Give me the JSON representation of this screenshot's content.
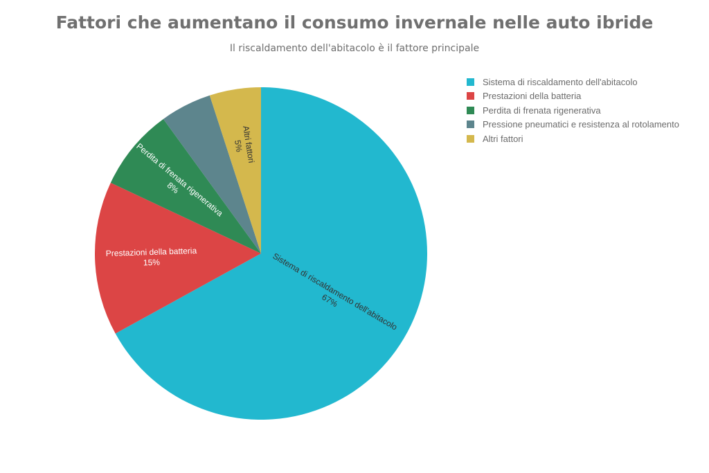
{
  "chart_data": {
    "type": "pie",
    "title": "Fattori che aumentano il consumo invernale nelle auto ibride",
    "subtitle": "Il riscaldamento dell'abitacolo è il fattore principale",
    "legend_position": "top-right",
    "slices": [
      {
        "label": "Sistema di riscaldamento dell'abitacolo",
        "value": 67,
        "value_label": "67%",
        "color": "#22b8cf"
      },
      {
        "label": "Prestazioni della batteria",
        "value": 15,
        "value_label": "15%",
        "color": "#dc4545"
      },
      {
        "label": "Perdita di frenata rigenerativa",
        "value": 8,
        "value_label": "8%",
        "color": "#2f8a55"
      },
      {
        "label": "Pressione pneumatici e resistenza al rotolamento",
        "value": 5,
        "value_label": "",
        "color": "#5d858d"
      },
      {
        "label": "Altri fattori",
        "value": 5,
        "value_label": "5%",
        "color": "#d4b84d"
      }
    ]
  }
}
